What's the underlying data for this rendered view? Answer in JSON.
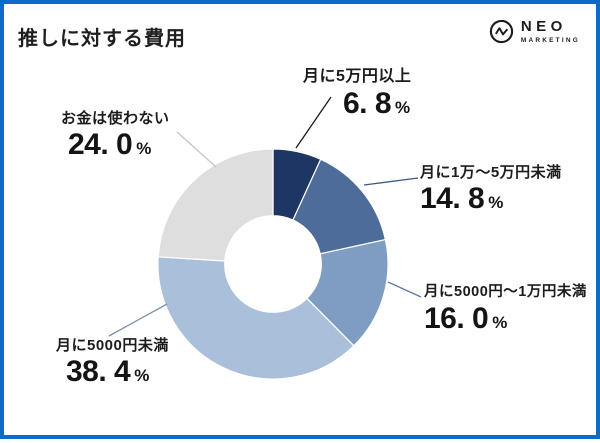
{
  "page": {
    "title": "推しに対する費用",
    "background_color": "#ffffff",
    "border_color": "#0d6cc8"
  },
  "logo": {
    "brand": "NEO",
    "brand_sub": "MARKETING",
    "color": "#1c1c1c",
    "icon": "pulse-wave-circle-icon"
  },
  "chart_data": {
    "type": "pie",
    "subtype": "donut",
    "title": "推しに対する費用",
    "unit": "%",
    "start_angle_deg": 0,
    "direction": "clockwise",
    "inner_radius_ratio": 0.42,
    "total": 100,
    "legend_position": "callout-labels",
    "segments": [
      {
        "label": "月に5万円以上",
        "value": 6.8,
        "value_display": "6. 8",
        "color": "#1e3663",
        "leader_color": "#1a1a1a"
      },
      {
        "label": "月に1万～5万円未満",
        "value": 14.8,
        "value_display": "14. 8",
        "color": "#4d6c99",
        "leader_color": "#3d5b88"
      },
      {
        "label": "月に5000円～1万円未満",
        "value": 16.0,
        "value_display": "16. 0",
        "color": "#7f9cc3",
        "leader_color": "#5e7ba5"
      },
      {
        "label": "月に5000円未満",
        "value": 38.4,
        "value_display": "38. 4",
        "color": "#aabfd9",
        "leader_color": "#7d90ad"
      },
      {
        "label": "お金は使わない",
        "value": 24.0,
        "value_display": "24. 0",
        "color": "#dedede",
        "leader_color": "#c6c6c6"
      }
    ]
  }
}
